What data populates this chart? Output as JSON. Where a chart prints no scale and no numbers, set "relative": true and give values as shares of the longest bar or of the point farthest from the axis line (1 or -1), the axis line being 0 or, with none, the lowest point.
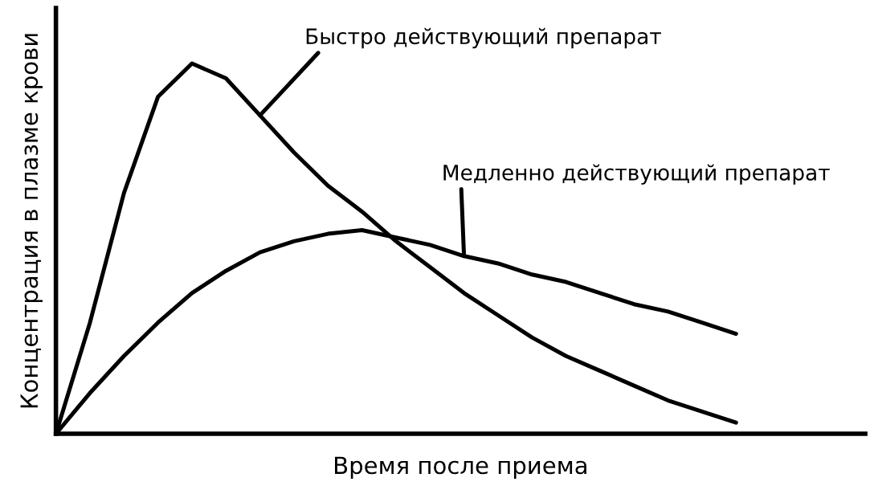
{
  "chart_data": {
    "type": "line",
    "relative": true,
    "xlabel": "Время после приема",
    "ylabel": "Концентрация в плазме крови",
    "categories": [
      null,
      null,
      null,
      null,
      null,
      null,
      null,
      null,
      null,
      null,
      null,
      null,
      null,
      null,
      null,
      null,
      null,
      null,
      null,
      null,
      null
    ],
    "marker": "none",
    "line_style": "solid",
    "legend": false,
    "series": [
      {
        "name": "Быстро действующий препарат",
        "color": "#000000",
        "values": [
          0,
          0.3,
          0.65,
          0.91,
          1.0,
          0.96,
          0.86,
          0.76,
          0.67,
          0.6,
          0.52,
          0.45,
          0.38,
          0.32,
          0.26,
          0.21,
          0.17,
          0.13,
          0.09,
          0.06,
          0.03
        ]
      },
      {
        "name": "Медленно действующий препарат",
        "color": "#000000",
        "values": [
          0,
          0.11,
          0.21,
          0.3,
          0.38,
          0.44,
          0.49,
          0.52,
          0.54,
          0.55,
          0.53,
          0.51,
          0.48,
          0.46,
          0.43,
          0.41,
          0.38,
          0.35,
          0.33,
          0.3,
          0.27
        ]
      }
    ]
  }
}
